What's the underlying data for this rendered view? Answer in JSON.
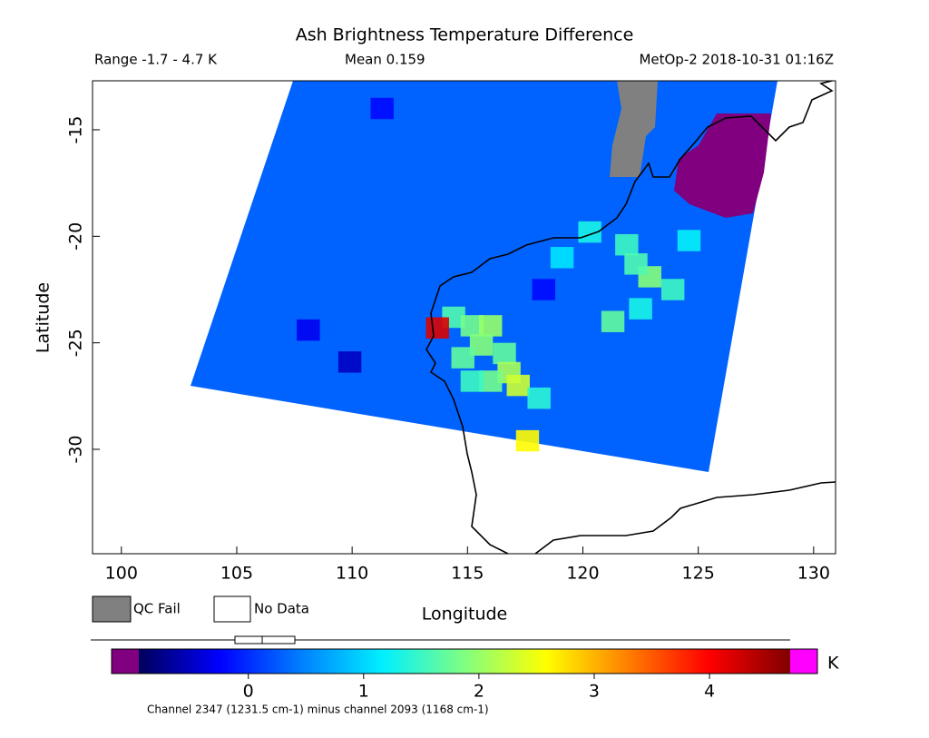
{
  "chart_data": {
    "type": "map",
    "title": "Ash Brightness Temperature Difference",
    "range_text": "Range -1.7 - 4.7 K",
    "mean_text": "Mean 0.159",
    "source_text": "MetOp-2 2018-10-31 01:16Z",
    "xlabel": "Longitude",
    "ylabel": "Latitude",
    "xlim": [
      98.75,
      130.95
    ],
    "ylim": [
      -34.9,
      -12.7
    ],
    "xticks": [
      100,
      105,
      110,
      115,
      120,
      125,
      130
    ],
    "yticks": [
      -15,
      -20,
      -25,
      -30
    ],
    "swath_value": 0.3,
    "cells": {
      "lon": [
        114.4,
        115.2,
        116.0,
        115.6,
        116.6,
        114.8,
        116.8,
        117.2,
        116.0,
        115.2,
        117.6,
        118.1,
        113.7,
        121.9,
        122.9,
        122.3,
        123.9,
        121.3,
        122.5,
        120.3,
        124.6,
        119.1,
        109.9,
        108.1,
        118.3,
        111.3
      ],
      "lat": [
        -23.8,
        -24.2,
        -24.2,
        -25.1,
        -25.5,
        -25.7,
        -26.4,
        -27.0,
        -26.8,
        -26.8,
        -29.6,
        -27.6,
        -24.3,
        -20.4,
        -21.9,
        -21.3,
        -22.5,
        -24.0,
        -23.4,
        -19.8,
        -20.2,
        -21.0,
        -25.9,
        -24.4,
        -22.5,
        -14.0
      ],
      "values": [
        1.6,
        1.8,
        2.0,
        1.9,
        1.7,
        1.7,
        2.1,
        2.3,
        1.8,
        1.5,
        2.6,
        1.4,
        4.2,
        1.5,
        1.9,
        1.6,
        1.5,
        1.7,
        1.3,
        1.3,
        1.2,
        1.1,
        -0.5,
        -0.3,
        -0.2,
        -0.2
      ]
    },
    "qc_color": "#808080",
    "under_color": "#800080",
    "over_color": "#ff00ff",
    "colormap": [
      "#00005a",
      "#0000ff",
      "#0080ff",
      "#00f0ff",
      "#80ff80",
      "#ffff00",
      "#ff8000",
      "#ff0000",
      "#800000"
    ],
    "colorbar_lim": [
      -0.95,
      4.7
    ],
    "colorbar_ticks": [
      0,
      1,
      2,
      3,
      4
    ],
    "colorbar_unit": "K",
    "legend": [
      "QC Fail",
      "No Data"
    ],
    "footer": "Channel 2347 (1231.5 cm-1) minus channel 2093 (1168 cm-1)"
  }
}
